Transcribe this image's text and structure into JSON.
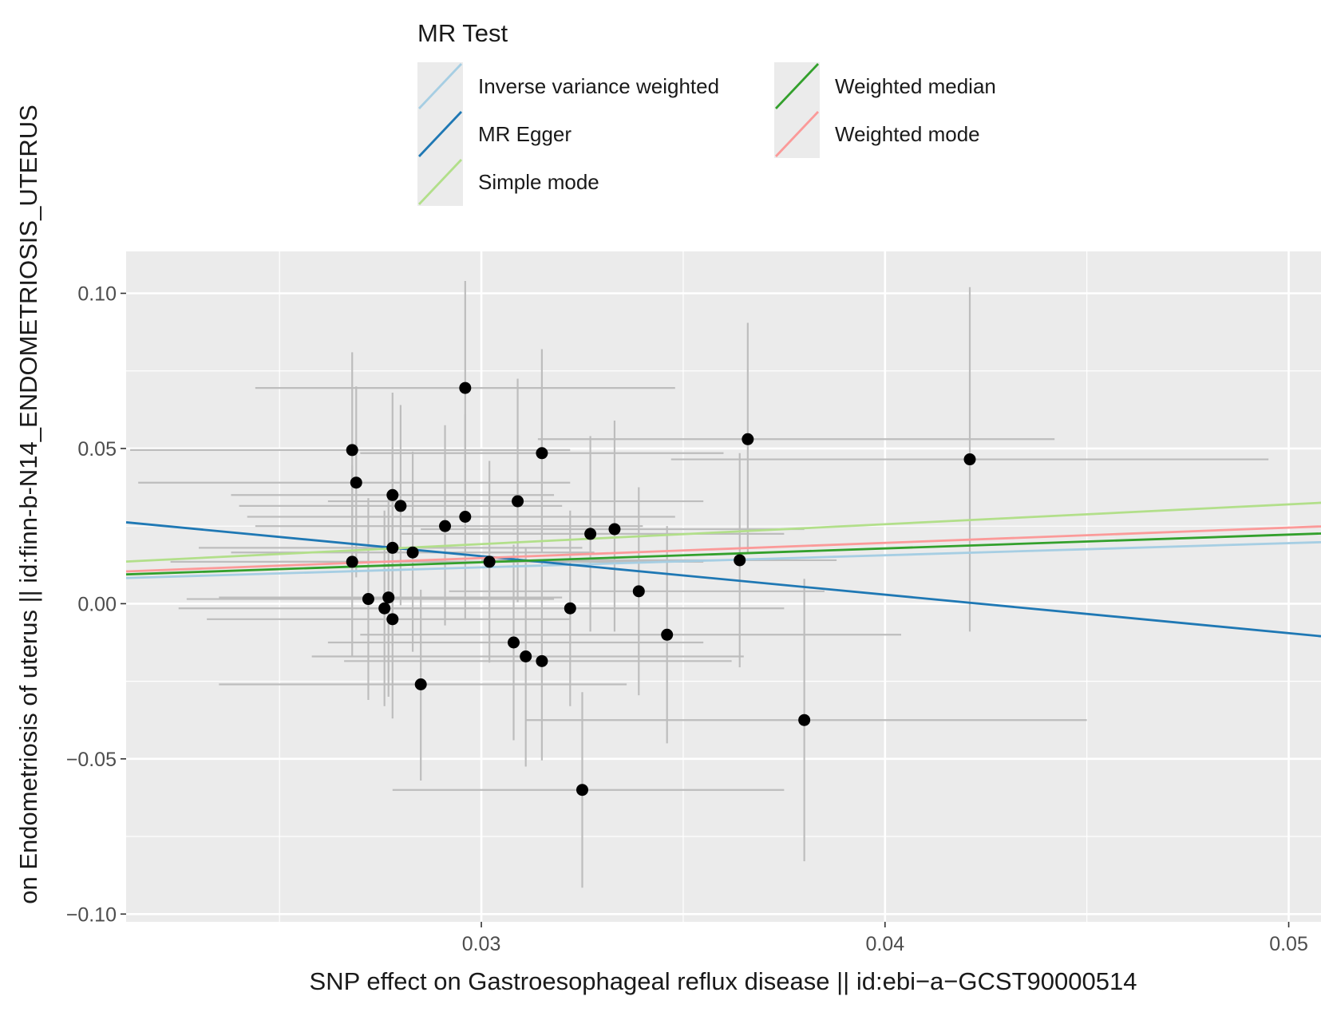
{
  "chart_data": {
    "type": "scatter",
    "title": "",
    "xlabel": "SNP effect on Gastroesophageal reflux disease || id:ebi−a−GCST90000514",
    "ylabel": "on Endometriosis of uterus || id:finn-b-N14_ENDOMETRIOSIS_UTERUS",
    "xlim": [
      0.0212,
      0.0508
    ],
    "ylim": [
      -0.1025,
      0.1135
    ],
    "x_ticks": [
      0.03,
      0.04,
      0.05
    ],
    "x_tick_labels": [
      "0.03",
      "0.04",
      "0.05"
    ],
    "y_ticks": [
      -0.1,
      -0.05,
      0.0,
      0.05,
      0.1
    ],
    "y_tick_labels": [
      "−0.10",
      "−0.05",
      "0.00",
      "0.05",
      "0.10"
    ],
    "legend": {
      "title": "MR Test",
      "position": "top",
      "entries": [
        {
          "label": "Inverse variance weighted",
          "color": "#a6cee3"
        },
        {
          "label": "MR Egger",
          "color": "#1f78b4"
        },
        {
          "label": "Simple mode",
          "color": "#b2df8a"
        },
        {
          "label": "Weighted median",
          "color": "#33a02c"
        },
        {
          "label": "Weighted mode",
          "color": "#fb9a99"
        }
      ]
    },
    "lines": [
      {
        "name": "Inverse variance weighted",
        "color": "#a6cee3",
        "intercept": 0.0,
        "slope": 0.39
      },
      {
        "name": "MR Egger",
        "color": "#1f78b4",
        "intercept": 0.0525,
        "slope": -1.24
      },
      {
        "name": "Simple mode",
        "color": "#b2df8a",
        "intercept": 0.0,
        "slope": 0.64
      },
      {
        "name": "Weighted median",
        "color": "#33a02c",
        "intercept": 0.0,
        "slope": 0.445
      },
      {
        "name": "Weighted mode",
        "color": "#fb9a99",
        "intercept": 0.0,
        "slope": 0.49
      }
    ],
    "points": [
      {
        "x": 0.0268,
        "y": 0.0495,
        "x_lo": 0.0213,
        "x_hi": 0.0322,
        "y_lo": 0.0185,
        "y_hi": 0.081
      },
      {
        "x": 0.0269,
        "y": 0.039,
        "x_lo": 0.0215,
        "x_hi": 0.0322,
        "y_lo": 0.0085,
        "y_hi": 0.07
      },
      {
        "x": 0.0268,
        "y": 0.0135,
        "x_lo": 0.0223,
        "x_hi": 0.0313,
        "y_lo": -0.017,
        "y_hi": 0.0445
      },
      {
        "x": 0.0272,
        "y": 0.0015,
        "x_lo": 0.0227,
        "x_hi": 0.0318,
        "y_lo": -0.031,
        "y_hi": 0.034
      },
      {
        "x": 0.0276,
        "y": -0.0015,
        "x_lo": 0.0225,
        "x_hi": 0.0327,
        "y_lo": -0.033,
        "y_hi": 0.03
      },
      {
        "x": 0.0277,
        "y": 0.002,
        "x_lo": 0.0235,
        "x_hi": 0.032,
        "y_lo": -0.03,
        "y_hi": 0.0345
      },
      {
        "x": 0.0278,
        "y": 0.035,
        "x_lo": 0.0238,
        "x_hi": 0.0318,
        "y_lo": 0.004,
        "y_hi": 0.068
      },
      {
        "x": 0.0278,
        "y": 0.018,
        "x_lo": 0.023,
        "x_hi": 0.0325,
        "y_lo": -0.0135,
        "y_hi": 0.0505
      },
      {
        "x": 0.0278,
        "y": -0.005,
        "x_lo": 0.0232,
        "x_hi": 0.0322,
        "y_lo": -0.037,
        "y_hi": 0.027
      },
      {
        "x": 0.028,
        "y": 0.0315,
        "x_lo": 0.024,
        "x_hi": 0.032,
        "y_lo": -0.0005,
        "y_hi": 0.064
      },
      {
        "x": 0.0283,
        "y": 0.0165,
        "x_lo": 0.0238,
        "x_hi": 0.0328,
        "y_lo": -0.0155,
        "y_hi": 0.049
      },
      {
        "x": 0.0285,
        "y": -0.026,
        "x_lo": 0.0235,
        "x_hi": 0.0336,
        "y_lo": -0.057,
        "y_hi": 0.0045
      },
      {
        "x": 0.0291,
        "y": 0.025,
        "x_lo": 0.0244,
        "x_hi": 0.034,
        "y_lo": -0.007,
        "y_hi": 0.0575
      },
      {
        "x": 0.0296,
        "y": 0.0695,
        "x_lo": 0.0244,
        "x_hi": 0.0348,
        "y_lo": 0.036,
        "y_hi": 0.104
      },
      {
        "x": 0.0296,
        "y": 0.028,
        "x_lo": 0.0242,
        "x_hi": 0.0348,
        "y_lo": -0.005,
        "y_hi": 0.061
      },
      {
        "x": 0.0302,
        "y": 0.0135,
        "x_lo": 0.025,
        "x_hi": 0.0355,
        "y_lo": -0.019,
        "y_hi": 0.046
      },
      {
        "x": 0.0308,
        "y": -0.0125,
        "x_lo": 0.0262,
        "x_hi": 0.0355,
        "y_lo": -0.044,
        "y_hi": 0.019
      },
      {
        "x": 0.0309,
        "y": 0.033,
        "x_lo": 0.0262,
        "x_hi": 0.0355,
        "y_lo": 0.0005,
        "y_hi": 0.0725
      },
      {
        "x": 0.0311,
        "y": -0.017,
        "x_lo": 0.0258,
        "x_hi": 0.0365,
        "y_lo": -0.0525,
        "y_hi": 0.018
      },
      {
        "x": 0.0315,
        "y": 0.0485,
        "x_lo": 0.027,
        "x_hi": 0.036,
        "y_lo": 0.0165,
        "y_hi": 0.082
      },
      {
        "x": 0.0315,
        "y": -0.0185,
        "x_lo": 0.0266,
        "x_hi": 0.0362,
        "y_lo": -0.0505,
        "y_hi": 0.0135
      },
      {
        "x": 0.0322,
        "y": -0.0015,
        "x_lo": 0.027,
        "x_hi": 0.0375,
        "y_lo": -0.033,
        "y_hi": 0.03
      },
      {
        "x": 0.0325,
        "y": -0.06,
        "x_lo": 0.0278,
        "x_hi": 0.0375,
        "y_lo": -0.0915,
        "y_hi": -0.0285
      },
      {
        "x": 0.0327,
        "y": 0.0225,
        "x_lo": 0.028,
        "x_hi": 0.0375,
        "y_lo": -0.009,
        "y_hi": 0.054
      },
      {
        "x": 0.0333,
        "y": 0.024,
        "x_lo": 0.0285,
        "x_hi": 0.038,
        "y_lo": -0.009,
        "y_hi": 0.059
      },
      {
        "x": 0.0339,
        "y": 0.004,
        "x_lo": 0.0292,
        "x_hi": 0.0385,
        "y_lo": -0.0295,
        "y_hi": 0.0375
      },
      {
        "x": 0.0346,
        "y": -0.01,
        "x_lo": 0.027,
        "x_hi": 0.0404,
        "y_lo": -0.045,
        "y_hi": 0.025
      },
      {
        "x": 0.0364,
        "y": 0.014,
        "x_lo": 0.03,
        "x_hi": 0.0388,
        "y_lo": -0.0205,
        "y_hi": 0.0485
      },
      {
        "x": 0.0366,
        "y": 0.053,
        "x_lo": 0.0314,
        "x_hi": 0.0442,
        "y_lo": 0.0165,
        "y_hi": 0.0905
      },
      {
        "x": 0.038,
        "y": -0.0375,
        "x_lo": 0.0311,
        "x_hi": 0.045,
        "y_lo": -0.083,
        "y_hi": 0.008
      },
      {
        "x": 0.0421,
        "y": 0.0465,
        "x_lo": 0.0347,
        "x_hi": 0.0495,
        "y_lo": -0.009,
        "y_hi": 0.102
      }
    ]
  }
}
